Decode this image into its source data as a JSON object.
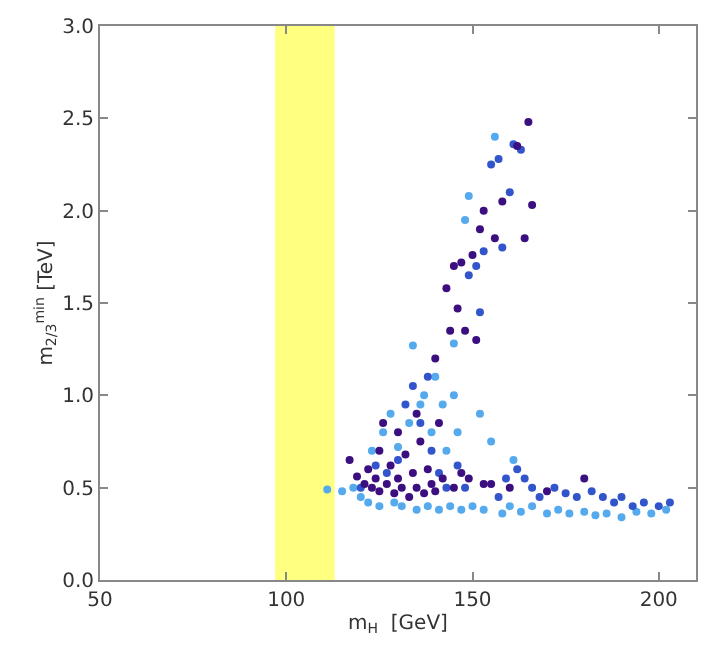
{
  "chart_data": {
    "type": "scatter",
    "xlabel": "m$_{H}$  [GeV]",
    "ylabel": "m$_{2/3}$$^{min}$ [TeV]",
    "xlim": [
      50,
      210
    ],
    "ylim": [
      0,
      3
    ],
    "xticks": [
      50,
      100,
      150,
      200
    ],
    "yticks": [
      {
        "value": 0,
        "label": "0.0"
      },
      {
        "value": 0.5,
        "label": "0.5"
      },
      {
        "value": 1,
        "label": "1.0"
      },
      {
        "value": 1.5,
        "label": "1.5"
      },
      {
        "value": 2,
        "label": "2.0"
      },
      {
        "value": 2.5,
        "label": "2.5"
      },
      {
        "value": 3,
        "label": "3.0"
      }
    ],
    "grid": false,
    "marker": "circle",
    "bands": [
      {
        "axis": "x",
        "from": 97,
        "to": 113,
        "color": "#ffff80"
      }
    ],
    "series": [
      {
        "color": "#55aaee",
        "x": [
          111,
          115,
          118,
          120,
          122,
          123,
          125,
          126,
          128,
          129,
          130,
          131,
          133,
          134,
          135,
          136,
          137,
          138,
          139,
          140,
          141,
          142,
          143,
          144,
          145,
          146,
          147,
          148,
          149,
          150,
          152,
          153,
          155,
          156,
          158,
          160,
          163,
          166,
          170,
          173,
          176,
          180,
          183,
          186,
          190,
          194,
          198,
          202,
          161,
          145
        ],
        "values": [
          0.49,
          0.48,
          0.5,
          0.45,
          0.42,
          0.7,
          0.4,
          0.8,
          0.9,
          0.42,
          0.72,
          0.4,
          0.85,
          1.27,
          0.38,
          0.95,
          1.0,
          0.4,
          0.8,
          1.1,
          0.38,
          0.95,
          0.7,
          0.4,
          1.0,
          0.8,
          0.38,
          1.95,
          2.08,
          0.4,
          0.9,
          0.38,
          0.75,
          2.4,
          0.36,
          0.4,
          0.37,
          0.4,
          0.36,
          0.38,
          0.36,
          0.37,
          0.35,
          0.36,
          0.34,
          0.37,
          0.36,
          0.38,
          0.65,
          1.28
        ]
      },
      {
        "color": "#3355cc",
        "x": [
          120,
          124,
          127,
          130,
          132,
          134,
          136,
          138,
          139,
          141,
          143,
          146,
          148,
          149,
          151,
          152,
          153,
          155,
          157,
          158,
          160,
          161,
          163,
          159,
          162,
          166,
          168,
          172,
          175,
          178,
          182,
          185,
          188,
          190,
          193,
          196,
          200,
          203,
          157,
          164
        ],
        "values": [
          0.5,
          0.62,
          0.58,
          0.65,
          0.95,
          1.05,
          0.85,
          1.1,
          0.7,
          0.58,
          0.5,
          0.62,
          0.5,
          1.65,
          1.7,
          1.45,
          1.78,
          2.25,
          2.28,
          1.8,
          2.1,
          2.36,
          2.33,
          0.55,
          0.6,
          0.5,
          0.45,
          0.5,
          0.47,
          0.45,
          0.48,
          0.45,
          0.42,
          0.45,
          0.4,
          0.42,
          0.4,
          0.42,
          0.45,
          0.55
        ]
      },
      {
        "color": "#3b0f7f",
        "x": [
          117,
          119,
          121,
          122,
          123,
          124,
          125,
          125,
          126,
          127,
          128,
          129,
          130,
          130,
          131,
          132,
          133,
          134,
          135,
          135,
          136,
          137,
          138,
          139,
          140,
          140,
          141,
          142,
          143,
          144,
          145,
          145,
          146,
          147,
          148,
          149,
          150,
          151,
          152,
          153,
          155,
          156,
          158,
          160,
          162,
          164,
          165,
          166,
          170,
          180,
          153,
          147
        ],
        "values": [
          0.65,
          0.56,
          0.52,
          0.6,
          0.5,
          0.55,
          0.48,
          0.7,
          0.85,
          0.52,
          0.62,
          0.47,
          0.55,
          0.8,
          0.5,
          0.68,
          0.45,
          0.58,
          0.5,
          0.9,
          0.75,
          0.47,
          0.6,
          0.52,
          1.2,
          0.48,
          0.85,
          0.55,
          1.58,
          1.35,
          0.5,
          1.7,
          1.47,
          1.72,
          1.35,
          0.55,
          1.76,
          1.3,
          1.9,
          2.0,
          0.52,
          1.85,
          2.05,
          0.5,
          2.35,
          1.85,
          2.48,
          2.03,
          0.48,
          0.55,
          0.52,
          0.58
        ]
      }
    ]
  }
}
